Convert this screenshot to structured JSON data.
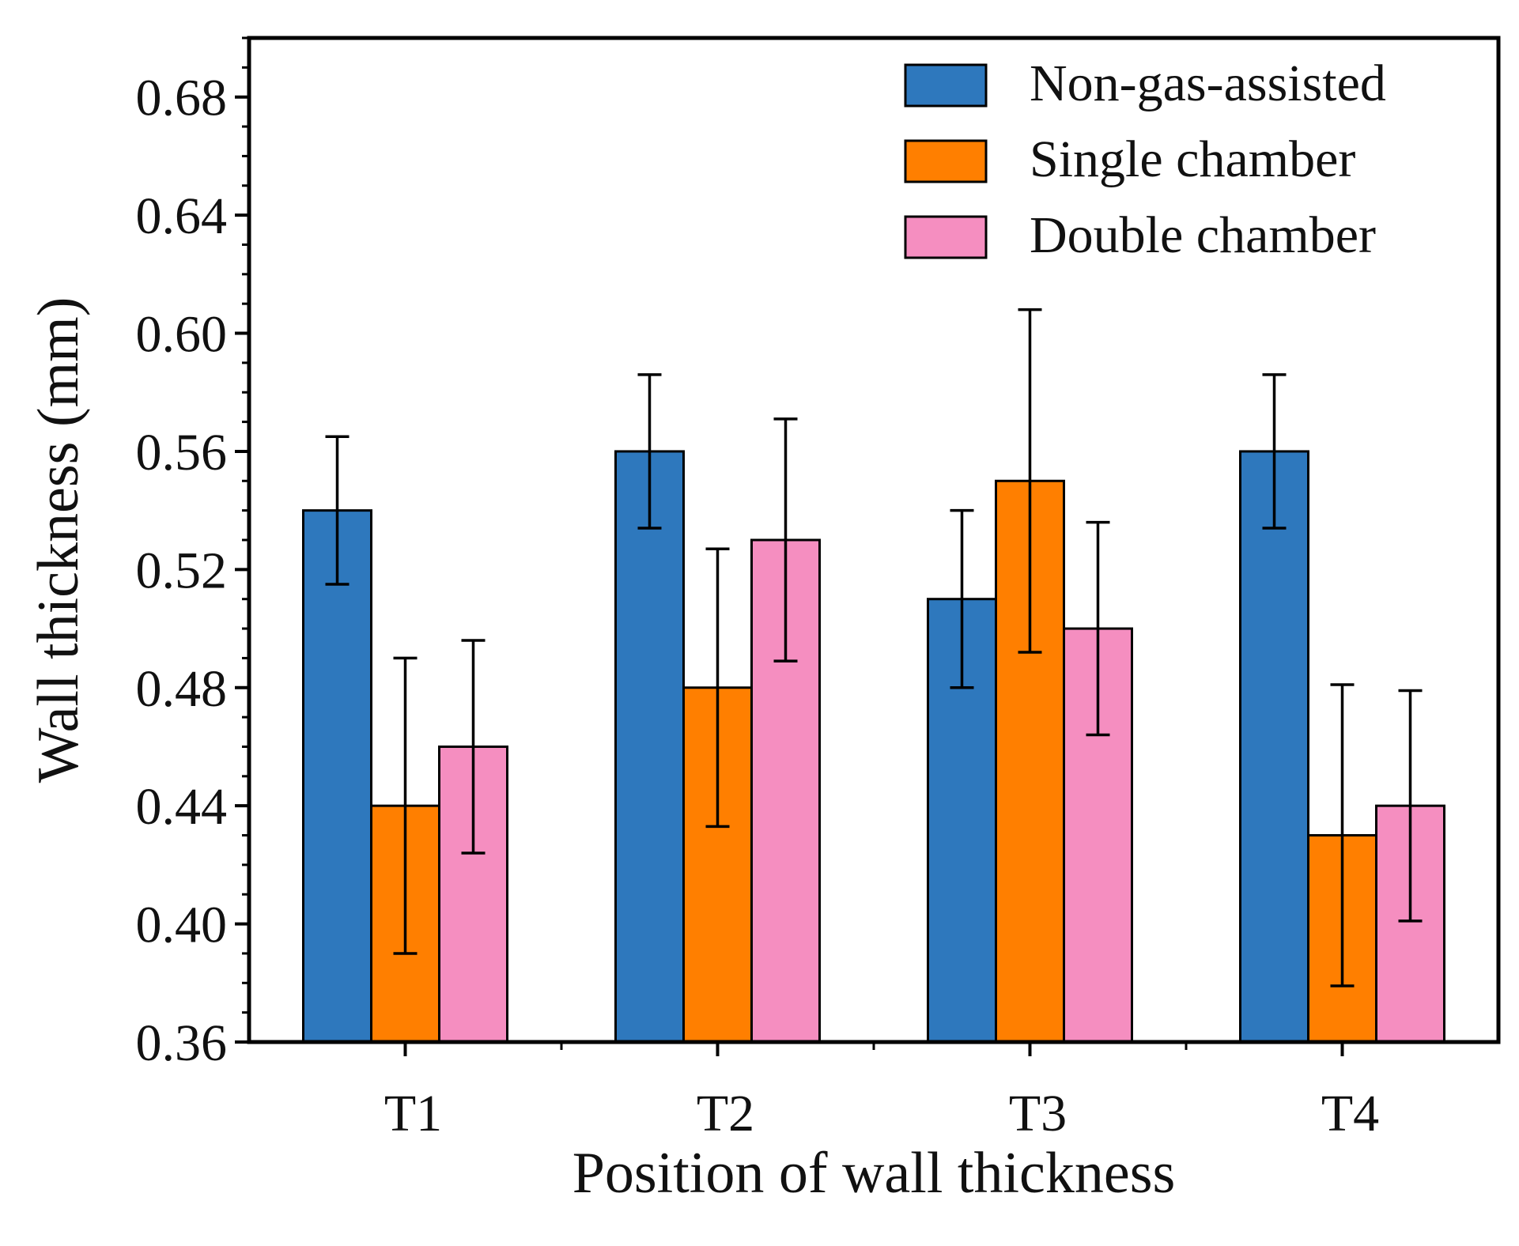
{
  "chart_data": {
    "type": "bar",
    "title": "",
    "xlabel": "Position of wall thickness",
    "ylabel": "Wall thickness (mm)",
    "categories": [
      "T1",
      "T2",
      "T3",
      "T4"
    ],
    "ylim": [
      0.36,
      0.7
    ],
    "yticks": [
      "0.36",
      "0.40",
      "0.44",
      "0.48",
      "0.52",
      "0.56",
      "0.60",
      "0.64",
      "0.68"
    ],
    "grid": false,
    "legend_position": "top-right",
    "series": [
      {
        "name": "Non-gas-assisted",
        "color": "#2e78bd",
        "values": [
          0.54,
          0.56,
          0.51,
          0.56
        ],
        "error": [
          0.025,
          0.026,
          0.03,
          0.026
        ]
      },
      {
        "name": "Single chamber",
        "color": "#ff7f00",
        "values": [
          0.44,
          0.48,
          0.55,
          0.43
        ],
        "error": [
          0.05,
          0.047,
          0.058,
          0.051
        ]
      },
      {
        "name": "Double chamber",
        "color": "#f58ec0",
        "values": [
          0.46,
          0.53,
          0.5,
          0.44
        ],
        "error": [
          0.036,
          0.041,
          0.036,
          0.039
        ]
      }
    ]
  }
}
